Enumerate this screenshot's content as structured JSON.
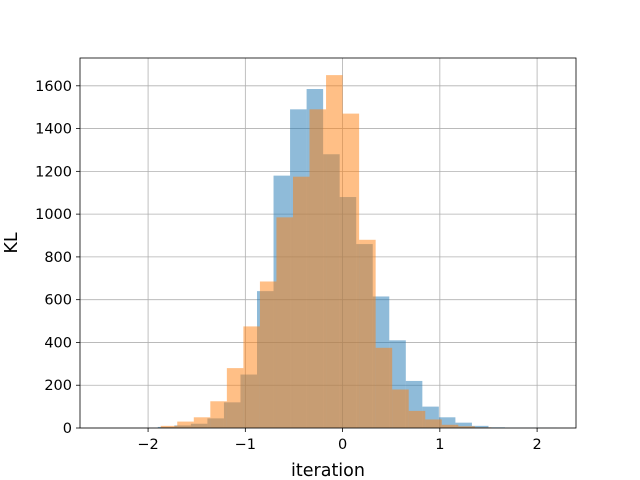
{
  "chart_data": {
    "type": "histogram",
    "title": "",
    "xlabel": "iteration",
    "ylabel": "KL",
    "xlim": [
      -2.7,
      2.4
    ],
    "ylim": [
      0,
      1730
    ],
    "grid": true,
    "legend": "none",
    "xticks": [
      -2,
      -1,
      0,
      1,
      2
    ],
    "xtick_labels": [
      "−2",
      "−1",
      "0",
      "1",
      "2"
    ],
    "yticks": [
      0,
      200,
      400,
      600,
      800,
      1000,
      1200,
      1400,
      1600
    ],
    "ytick_labels": [
      "0",
      "200",
      "400",
      "600",
      "800",
      "1000",
      "1200",
      "1400",
      "1600"
    ],
    "series": [
      {
        "color": "#1f77b4",
        "alpha": 0.5,
        "bin_edges": [
          -1.9,
          -1.73,
          -1.56,
          -1.39,
          -1.22,
          -1.05,
          -0.88,
          -0.71,
          -0.54,
          -0.37,
          -0.2,
          -0.03,
          0.14,
          0.31,
          0.48,
          0.65,
          0.82,
          0.99,
          1.16,
          1.33,
          1.5,
          1.67,
          2.2
        ],
        "counts": [
          5,
          12,
          20,
          45,
          120,
          250,
          640,
          1180,
          1490,
          1585,
          1280,
          1080,
          860,
          615,
          410,
          220,
          100,
          50,
          25,
          10,
          3,
          1
        ]
      },
      {
        "color": "#ff7f0e",
        "alpha": 0.5,
        "bin_edges": [
          -1.87,
          -1.7,
          -1.53,
          -1.36,
          -1.19,
          -1.02,
          -0.85,
          -0.68,
          -0.51,
          -0.34,
          -0.17,
          0.0,
          0.17,
          0.34,
          0.51,
          0.68,
          0.85,
          1.02,
          1.19,
          1.36,
          1.53
        ],
        "counts": [
          10,
          30,
          50,
          125,
          280,
          475,
          685,
          985,
          1175,
          1490,
          1650,
          1470,
          880,
          375,
          180,
          80,
          40,
          15,
          8,
          3
        ]
      }
    ]
  }
}
